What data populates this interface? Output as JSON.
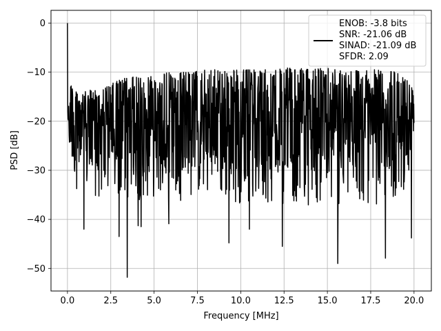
{
  "chart_data": {
    "type": "line",
    "xlabel": "Frequency [MHz]",
    "ylabel": "PSD [dB]",
    "xlim": [
      -0.95,
      21.0
    ],
    "ylim": [
      -54.6,
      2.6
    ],
    "x_ticks": [
      0.0,
      2.5,
      5.0,
      7.5,
      10.0,
      12.5,
      15.0,
      17.5,
      20.0
    ],
    "x_tick_labels": [
      "0.0",
      "2.5",
      "5.0",
      "7.5",
      "10.0",
      "12.5",
      "15.0",
      "17.5",
      "20.0"
    ],
    "y_ticks": [
      0,
      -10,
      -20,
      -30,
      -40,
      -50
    ],
    "y_tick_labels": [
      "0",
      "−10",
      "−20",
      "−30",
      "−40",
      "−50"
    ],
    "grid": true,
    "legend_position": "top-right",
    "series": [
      {
        "color": "#000000",
        "x_range": [
          0.0,
          20.0
        ],
        "peak": {
          "x": 0.0,
          "y": 0.0
        },
        "notable_dips": [
          {
            "x": 0.95,
            "y": -42.0
          },
          {
            "x": 2.98,
            "y": -43.5
          },
          {
            "x": 3.45,
            "y": -51.8
          },
          {
            "x": 4.08,
            "y": -41.3
          },
          {
            "x": 4.25,
            "y": -41.5
          },
          {
            "x": 5.85,
            "y": -40.9
          },
          {
            "x": 9.32,
            "y": -44.8
          },
          {
            "x": 10.5,
            "y": -42.0
          },
          {
            "x": 12.4,
            "y": -45.5
          },
          {
            "x": 15.6,
            "y": -49.0
          },
          {
            "x": 18.35,
            "y": -47.9
          },
          {
            "x": 19.85,
            "y": -43.8
          }
        ],
        "envelope": {
          "x": [
            0.0,
            0.1,
            0.25,
            0.5,
            1.0,
            1.5,
            2.0,
            2.5,
            3.0,
            3.5,
            4.0,
            5.0,
            6.0,
            7.0,
            8.0,
            9.0,
            10.0,
            11.0,
            12.0,
            13.0,
            14.0,
            15.0,
            16.0,
            17.0,
            18.0,
            19.0,
            20.0
          ],
          "upper": [
            0.0,
            -8.0,
            -12.0,
            -14.0,
            -14.0,
            -13.5,
            -13.5,
            -12.5,
            -11.5,
            -11.0,
            -11.0,
            -10.5,
            -10.0,
            -10.0,
            -9.5,
            -9.5,
            -9.5,
            -9.5,
            -9.5,
            -9.0,
            -9.5,
            -9.0,
            -9.5,
            -9.5,
            -9.5,
            -10.0,
            -12.5
          ],
          "lower": [
            -15.0,
            -26.0,
            -30.0,
            -34.0,
            -36.0,
            -36.5,
            -37.0,
            -37.0,
            -37.0,
            -37.0,
            -36.5,
            -36.0,
            -36.5,
            -36.0,
            -36.0,
            -37.0,
            -37.0,
            -37.5,
            -37.5,
            -37.0,
            -37.5,
            -37.5,
            -38.0,
            -37.5,
            -37.5,
            -37.0,
            -30.0
          ]
        },
        "typical_level": -19.5,
        "noise_points": 1200
      }
    ],
    "legend": {
      "entries": [
        {
          "color": "#000000",
          "lines": [
            "ENOB: -3.8 bits",
            "SNR: -21.06 dB",
            "SINAD: -21.09 dB",
            "SFDR: 2.09"
          ]
        }
      ]
    }
  }
}
